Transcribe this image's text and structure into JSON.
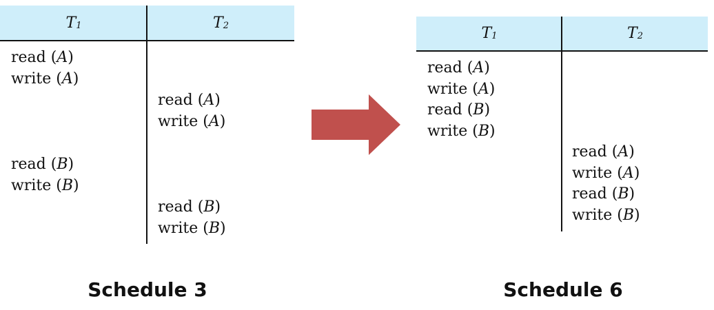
{
  "schedule3": {
    "caption": "Schedule 3",
    "t1_name": "T",
    "t1_sub": "1",
    "t2_name": "T",
    "t2_sub": "2",
    "t1_ops": [
      {
        "op": "read (",
        "var": "A",
        "end": ")"
      },
      {
        "op": "write (",
        "var": "A",
        "end": ")"
      },
      {
        "op": "read (",
        "var": "B",
        "end": ")"
      },
      {
        "op": "write (",
        "var": "B",
        "end": ")"
      }
    ],
    "t2_ops": [
      {
        "op": "read (",
        "var": "A",
        "end": ")"
      },
      {
        "op": "write (",
        "var": "A",
        "end": ")"
      },
      {
        "op": "read (",
        "var": "B",
        "end": ")"
      },
      {
        "op": "write (",
        "var": "B",
        "end": ")"
      }
    ]
  },
  "schedule6": {
    "caption": "Schedule 6",
    "t1_name": "T",
    "t1_sub": "1",
    "t2_name": "T",
    "t2_sub": "2",
    "t1_ops": [
      {
        "op": "read (",
        "var": "A",
        "end": ")"
      },
      {
        "op": "write (",
        "var": "A",
        "end": ")"
      },
      {
        "op": "read (",
        "var": "B",
        "end": ")"
      },
      {
        "op": "write (",
        "var": "B",
        "end": ")"
      }
    ],
    "t2_ops": [
      {
        "op": "read (",
        "var": "A",
        "end": ")"
      },
      {
        "op": "write (",
        "var": "A",
        "end": ")"
      },
      {
        "op": "read (",
        "var": "B",
        "end": ")"
      },
      {
        "op": "write (",
        "var": "B",
        "end": ")"
      }
    ]
  },
  "colors": {
    "header_bg": "#cfeefa",
    "arrow": "#c0504d"
  },
  "icons": {
    "arrow": "right-arrow-icon"
  }
}
